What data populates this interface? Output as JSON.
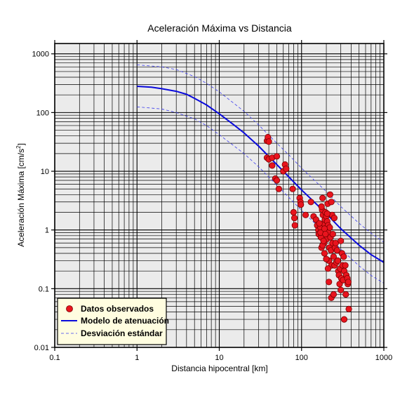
{
  "chart_data": {
    "type": "scatter",
    "title": "Aceleración Máxima vs Distancia",
    "xlabel": "Distancia hipocentral [km]",
    "ylabel_main": "Aceleración Máxima [cm/s",
    "ylabel_sup": "2",
    "ylabel_tail": "]",
    "x_scale": "log",
    "y_scale": "log",
    "xlim": [
      0.1,
      1000
    ],
    "ylim": [
      0.01,
      1500
    ],
    "x_ticks": [
      "0.1",
      "1",
      "10",
      "100",
      "1000"
    ],
    "x_tick_values": [
      0.1,
      1,
      10,
      100,
      1000
    ],
    "y_ticks": [
      "0.01",
      "0.1",
      "1",
      "10",
      "100",
      "1000"
    ],
    "y_tick_values": [
      0.01,
      0.1,
      1,
      10,
      100,
      1000
    ],
    "grid": true,
    "legend_position": "bottom-left",
    "colors": {
      "plot_bg": "#ebebeb",
      "grid": "#000000",
      "points_fill": "#e8141e",
      "points_stroke": "#7a0000",
      "model": "#0a0adc",
      "deviation": "#3a3aee",
      "legend_bg": "#fffde0"
    },
    "series": [
      {
        "name": "Datos observados",
        "type": "scatter",
        "points": [
          [
            38,
            33
          ],
          [
            39,
            38
          ],
          [
            40,
            32
          ],
          [
            38,
            17
          ],
          [
            40,
            16
          ],
          [
            44,
            17
          ],
          [
            44,
            12.5
          ],
          [
            48,
            7.5
          ],
          [
            50,
            7
          ],
          [
            50,
            18
          ],
          [
            53,
            5
          ],
          [
            60,
            10
          ],
          [
            63,
            13
          ],
          [
            65,
            11
          ],
          [
            78,
            5
          ],
          [
            80,
            2
          ],
          [
            82,
            1.6
          ],
          [
            83,
            1.2
          ],
          [
            95,
            3.5
          ],
          [
            97,
            3
          ],
          [
            98,
            2.7
          ],
          [
            112,
            1.8
          ],
          [
            130,
            3
          ],
          [
            140,
            1.7
          ],
          [
            150,
            1.5
          ],
          [
            155,
            1.2
          ],
          [
            160,
            1.0
          ],
          [
            162,
            0.85
          ],
          [
            170,
            1.1
          ],
          [
            172,
            0.75
          ],
          [
            175,
            0.5
          ],
          [
            178,
            2.2
          ],
          [
            180,
            3.5
          ],
          [
            182,
            1.8
          ],
          [
            185,
            1.3
          ],
          [
            188,
            0.6
          ],
          [
            190,
            0.4
          ],
          [
            192,
            1.5
          ],
          [
            195,
            2.0
          ],
          [
            198,
            0.95
          ],
          [
            200,
            1.7
          ],
          [
            202,
            0.7
          ],
          [
            205,
            1.4
          ],
          [
            208,
            2.8
          ],
          [
            210,
            1.2
          ],
          [
            212,
            0.9
          ],
          [
            215,
            0.3
          ],
          [
            218,
            0.5
          ],
          [
            220,
            1.1
          ],
          [
            222,
            4.0
          ],
          [
            225,
            0.75
          ],
          [
            228,
            0.45
          ],
          [
            230,
            3.0
          ],
          [
            232,
            0.25
          ],
          [
            235,
            1.8
          ],
          [
            238,
            0.6
          ],
          [
            240,
            0.85
          ],
          [
            245,
            0.35
          ],
          [
            250,
            1.6
          ],
          [
            252,
            0.25
          ],
          [
            255,
            0.5
          ],
          [
            260,
            0.6
          ],
          [
            265,
            0.28
          ],
          [
            270,
            0.45
          ],
          [
            275,
            0.3
          ],
          [
            280,
            0.2
          ],
          [
            285,
            0.17
          ],
          [
            290,
            0.12
          ],
          [
            295,
            0.22
          ],
          [
            300,
            0.65
          ],
          [
            305,
            0.15
          ],
          [
            310,
            0.4
          ],
          [
            315,
            0.25
          ],
          [
            320,
            0.14
          ],
          [
            325,
            0.35
          ],
          [
            330,
            0.2
          ],
          [
            340,
            0.25
          ],
          [
            345,
            0.08
          ],
          [
            350,
            0.17
          ],
          [
            360,
            0.15
          ],
          [
            365,
            0.12
          ],
          [
            370,
            0.13
          ],
          [
            375,
            0.045
          ],
          [
            215,
            0.13
          ],
          [
            330,
            0.03
          ],
          [
            230,
            0.07
          ],
          [
            245,
            0.08
          ],
          [
            300,
            0.095
          ],
          [
            180,
            0.55
          ],
          [
            170,
            0.9
          ],
          [
            165,
            1.3
          ],
          [
            190,
            1.05
          ],
          [
            200,
            0.32
          ],
          [
            210,
            0.22
          ],
          [
            175,
            2.5
          ],
          [
            185,
            0.65
          ],
          [
            205,
            1.9
          ],
          [
            195,
            0.85
          ]
        ]
      },
      {
        "name": "Modelo de atenuación",
        "type": "line",
        "points": [
          [
            1,
            280
          ],
          [
            1.5,
            270
          ],
          [
            2,
            255
          ],
          [
            3,
            230
          ],
          [
            4,
            205
          ],
          [
            5,
            175
          ],
          [
            7,
            135
          ],
          [
            10,
            95
          ],
          [
            15,
            62
          ],
          [
            20,
            45
          ],
          [
            30,
            27
          ],
          [
            50,
            13
          ],
          [
            70,
            8
          ],
          [
            100,
            4.8
          ],
          [
            150,
            2.8
          ],
          [
            200,
            1.9
          ],
          [
            300,
            1.05
          ],
          [
            500,
            0.55
          ],
          [
            700,
            0.38
          ],
          [
            1000,
            0.28
          ]
        ]
      },
      {
        "name": "Desviación estándar",
        "type": "line-dashed",
        "points_upper": [
          [
            1,
            650
          ],
          [
            2,
            600
          ],
          [
            3,
            540
          ],
          [
            5,
            410
          ],
          [
            7,
            315
          ],
          [
            10,
            225
          ],
          [
            20,
            105
          ],
          [
            30,
            62
          ],
          [
            50,
            30
          ],
          [
            70,
            19
          ],
          [
            100,
            11.3
          ],
          [
            200,
            4.5
          ],
          [
            300,
            2.5
          ],
          [
            500,
            1.3
          ],
          [
            700,
            0.88
          ],
          [
            1000,
            0.62
          ]
        ],
        "points_lower": [
          [
            1,
            125
          ],
          [
            2,
            115
          ],
          [
            3,
            100
          ],
          [
            5,
            78
          ],
          [
            7,
            60
          ],
          [
            10,
            42
          ],
          [
            20,
            20
          ],
          [
            30,
            12
          ],
          [
            50,
            5.8
          ],
          [
            70,
            3.6
          ],
          [
            100,
            2.15
          ],
          [
            200,
            0.84
          ],
          [
            300,
            0.47
          ],
          [
            500,
            0.245
          ],
          [
            700,
            0.168
          ],
          [
            1000,
            0.124
          ]
        ]
      }
    ]
  }
}
